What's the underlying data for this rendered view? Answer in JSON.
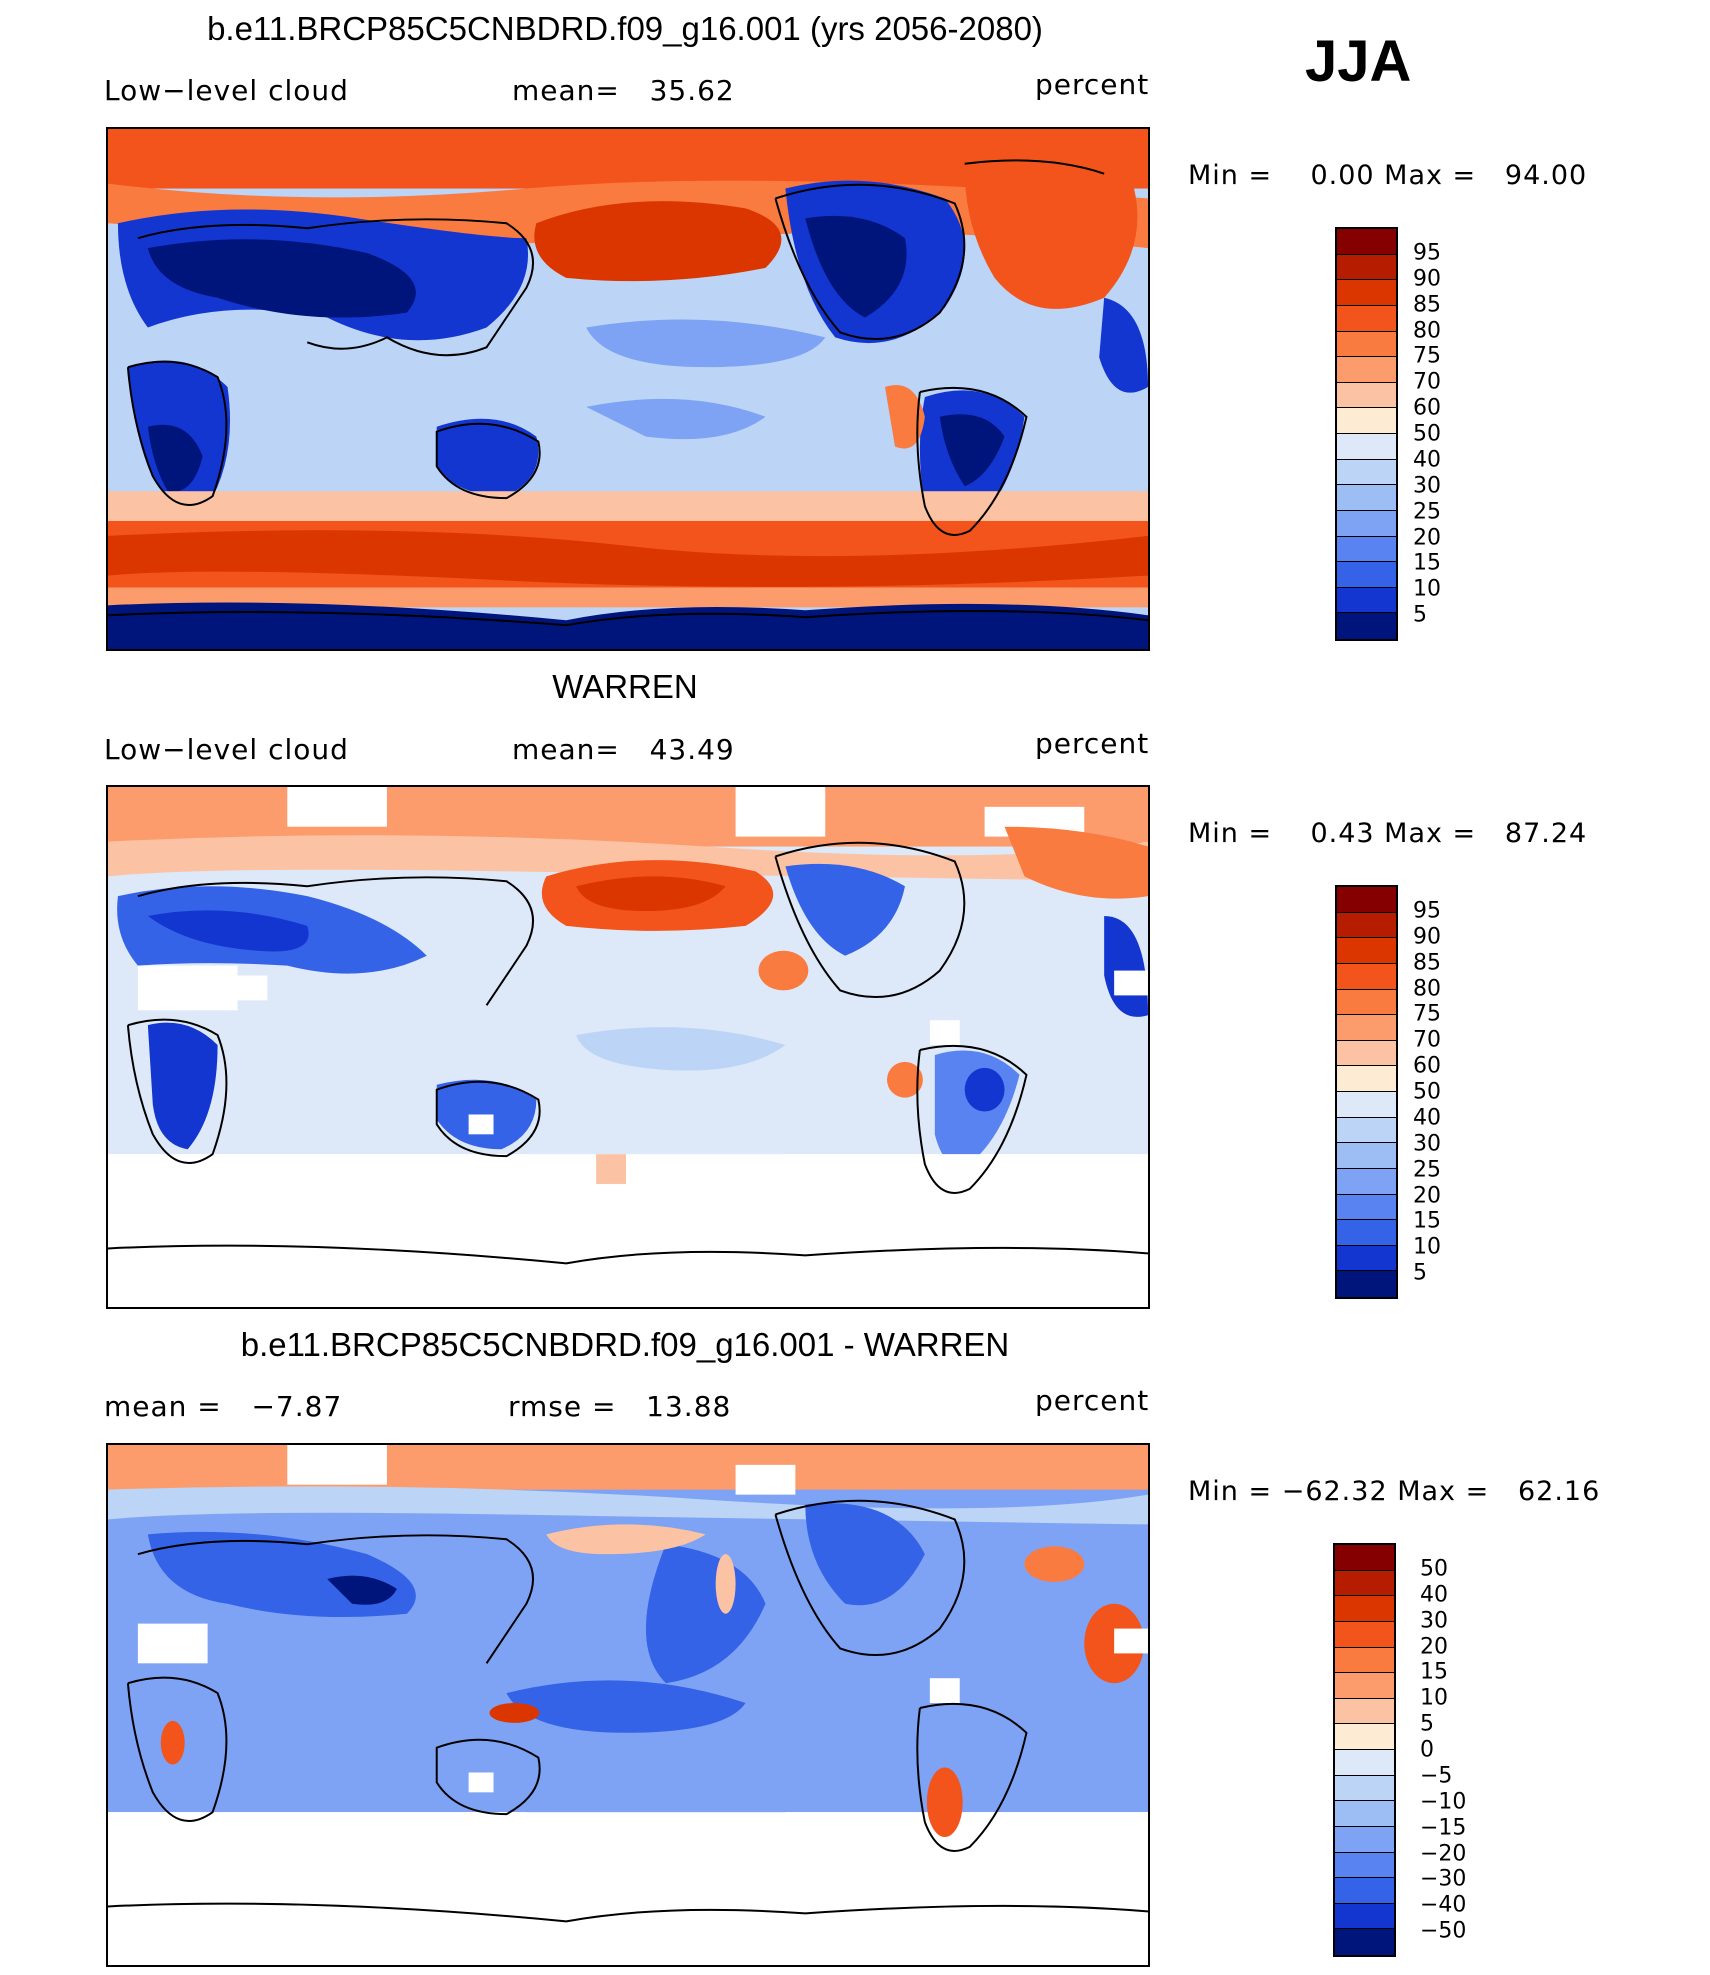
{
  "season": "JJA",
  "panels": [
    {
      "title": "b.e11.BRCP85C5CNBDRD.f09_g16.001 (yrs 2056-2080)",
      "left_label": "Low−level cloud",
      "center_label": "mean=   35.62",
      "right_label": "percent",
      "minmax": "Min =    0.00 Max =   94.00",
      "colorbar_labels": [
        "95",
        "90",
        "85",
        "80",
        "75",
        "70",
        "60",
        "50",
        "40",
        "30",
        "25",
        "20",
        "15",
        "10",
        "5"
      ],
      "colorbar_colors": [
        "#850000",
        "#b61d00",
        "#dc3600",
        "#f2541b",
        "#fa7b40",
        "#fc9c6d",
        "#fbc3a3",
        "#fdebd3",
        "#dde9f8",
        "#bcd4f6",
        "#9dbdf5",
        "#7ea3f4",
        "#5883f0",
        "#3463e8",
        "#1436d0",
        "#00157c"
      ]
    },
    {
      "title": "WARREN",
      "left_label": "Low−level cloud",
      "center_label": "mean=   43.49",
      "right_label": "percent",
      "minmax": "Min =    0.43 Max =   87.24",
      "colorbar_labels": [
        "95",
        "90",
        "85",
        "80",
        "75",
        "70",
        "60",
        "50",
        "40",
        "30",
        "25",
        "20",
        "15",
        "10",
        "5"
      ],
      "colorbar_colors": [
        "#850000",
        "#b61d00",
        "#dc3600",
        "#f2541b",
        "#fa7b40",
        "#fc9c6d",
        "#fbc3a3",
        "#fdebd3",
        "#dde9f8",
        "#bcd4f6",
        "#9dbdf5",
        "#7ea3f4",
        "#5883f0",
        "#3463e8",
        "#1436d0",
        "#00157c"
      ]
    },
    {
      "title": "b.e11.BRCP85C5CNBDRD.f09_g16.001 - WARREN",
      "left_label": "mean =   −7.87",
      "center_label": "rmse =   13.88",
      "right_label": "percent",
      "minmax": "Min = −62.32 Max =   62.16",
      "colorbar_labels": [
        "50",
        "40",
        "30",
        "20",
        "15",
        "10",
        "5",
        "0",
        "−5",
        "−10",
        "−15",
        "−20",
        "−30",
        "−40",
        "−50"
      ],
      "colorbar_colors": [
        "#850000",
        "#b61d00",
        "#dc3600",
        "#f2541b",
        "#fa7b40",
        "#fc9c6d",
        "#fbc3a3",
        "#fdebd3",
        "#dde9f8",
        "#bcd4f6",
        "#9dbdf5",
        "#7ea3f4",
        "#5883f0",
        "#3463e8",
        "#1436d0",
        "#00157c"
      ]
    }
  ]
}
